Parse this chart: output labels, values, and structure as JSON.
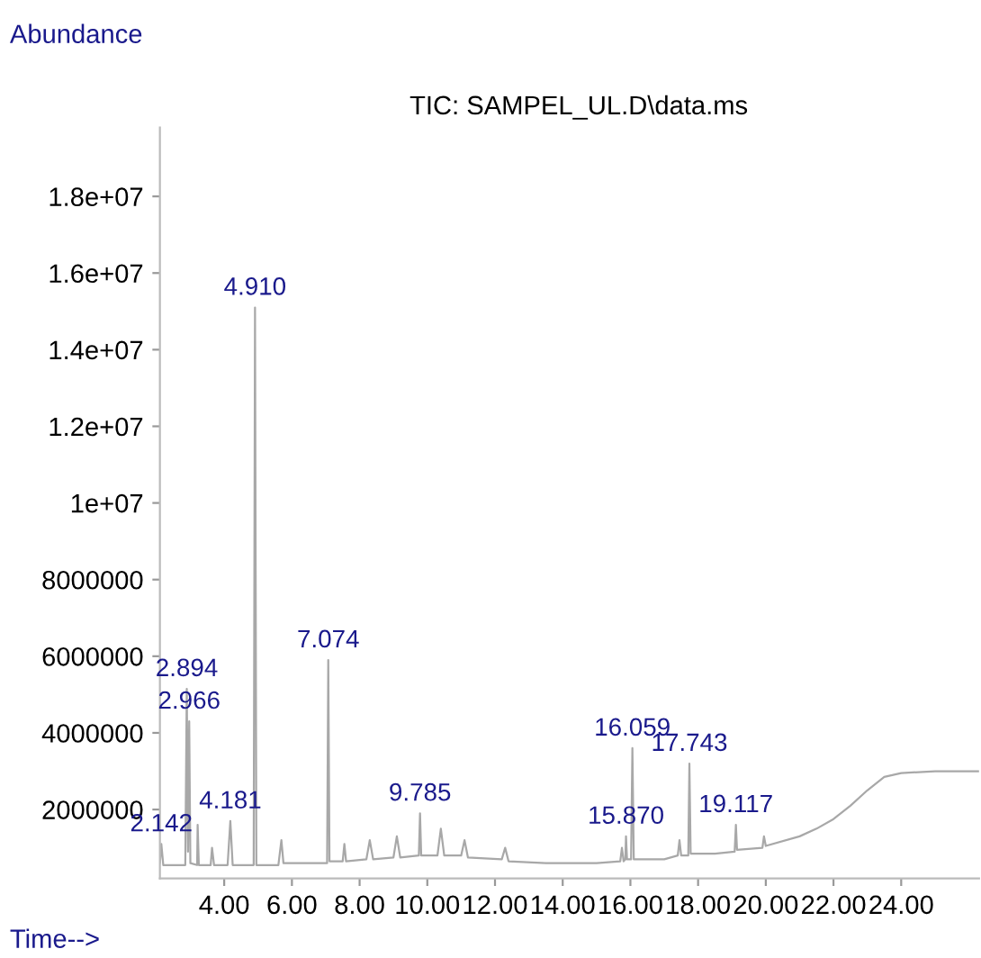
{
  "chart_data": {
    "type": "line",
    "title": "TIC: SAMPEL_UL.D\\data.ms",
    "xlabel": "Time-->",
    "ylabel": "Abundance",
    "series": [
      {
        "color": "#a8a8a8",
        "x": [
          2.1,
          2.142,
          2.2,
          2.85,
          2.894,
          2.93,
          2.966,
          3.0,
          3.2,
          3.215,
          3.25,
          3.6,
          3.64,
          3.7,
          4.1,
          4.181,
          4.25,
          4.87,
          4.91,
          4.95,
          5.6,
          5.689,
          5.75,
          6.5,
          7.04,
          7.074,
          7.11,
          7.5,
          7.55,
          7.6,
          8.2,
          8.3,
          8.4,
          9.0,
          9.1,
          9.2,
          9.75,
          9.785,
          9.82,
          10.3,
          10.4,
          10.5,
          11.0,
          11.1,
          11.2,
          12.2,
          12.3,
          12.4,
          13.5,
          15.0,
          15.7,
          15.75,
          15.8,
          15.85,
          15.87,
          15.9,
          16.02,
          16.059,
          16.1,
          17.0,
          17.4,
          17.45,
          17.5,
          17.71,
          17.743,
          17.78,
          18.5,
          19.08,
          19.117,
          19.15,
          19.9,
          19.946,
          20.0,
          21.0,
          21.5,
          22.0,
          22.5,
          23.0,
          23.5,
          24.0,
          25.0,
          26.3
        ],
        "values": [
          600000,
          1100000,
          550000,
          550000,
          5150000,
          900000,
          4300000,
          600000,
          550000,
          1600000,
          550000,
          550000,
          1000000,
          550000,
          550000,
          1700000,
          550000,
          550000,
          15100000,
          550000,
          550000,
          1200000,
          600000,
          600000,
          600000,
          5900000,
          650000,
          650000,
          1100000,
          650000,
          700000,
          1200000,
          700000,
          750000,
          1300000,
          750000,
          800000,
          1900000,
          800000,
          800000,
          1500000,
          800000,
          800000,
          1200000,
          750000,
          700000,
          1000000,
          650000,
          600000,
          600000,
          650000,
          1000000,
          650000,
          700000,
          1300000,
          700000,
          700000,
          3600000,
          700000,
          700000,
          800000,
          1200000,
          800000,
          800000,
          3200000,
          850000,
          850000,
          900000,
          1600000,
          950000,
          1000000,
          1300000,
          1050000,
          1300000,
          1500000,
          1750000,
          2100000,
          2500000,
          2850000,
          2950000,
          3000000,
          3000000
        ]
      }
    ],
    "annotations": [
      {
        "text": "2.142",
        "x": 2.142,
        "y": 1100000
      },
      {
        "text": "2.894",
        "x": 2.894,
        "y": 5150000
      },
      {
        "text": "2.966",
        "x": 2.966,
        "y": 4300000
      },
      {
        "text": "4.181",
        "x": 4.181,
        "y": 1700000
      },
      {
        "text": "4.910",
        "x": 4.91,
        "y": 15100000
      },
      {
        "text": "7.074",
        "x": 7.074,
        "y": 5900000
      },
      {
        "text": "9.785",
        "x": 9.785,
        "y": 1900000
      },
      {
        "text": "15.870",
        "x": 15.87,
        "y": 1300000
      },
      {
        "text": "16.059",
        "x": 16.059,
        "y": 3600000
      },
      {
        "text": "17.743",
        "x": 17.743,
        "y": 3200000
      },
      {
        "text": "19.117",
        "x": 19.117,
        "y": 1600000
      }
    ],
    "xlim": [
      2.1,
      26.3
    ],
    "ylim": [
      200000,
      19800000
    ],
    "xticks": [
      {
        "value": 4,
        "label": "4.00"
      },
      {
        "value": 6,
        "label": "6.00"
      },
      {
        "value": 8,
        "label": "8.00"
      },
      {
        "value": 10,
        "label": "10.00"
      },
      {
        "value": 12,
        "label": "12.00"
      },
      {
        "value": 14,
        "label": "14.00"
      },
      {
        "value": 16,
        "label": "16.00"
      },
      {
        "value": 18,
        "label": "18.00"
      },
      {
        "value": 20,
        "label": "20.00"
      },
      {
        "value": 22,
        "label": "22.00"
      },
      {
        "value": 24,
        "label": "24.00"
      }
    ],
    "yticks": [
      2000000,
      4000000,
      6000000,
      8000000,
      {
        "value": 10000000,
        "label": "1e+07"
      },
      {
        "value": 12000000,
        "label": "1.2e+07"
      },
      {
        "value": 14000000,
        "label": "1.4e+07"
      },
      {
        "value": 16000000,
        "label": "1.6e+07"
      },
      {
        "value": 18000000,
        "label": "1.8e+07"
      }
    ],
    "grid": false,
    "marker": "none",
    "line_style": "solid"
  }
}
